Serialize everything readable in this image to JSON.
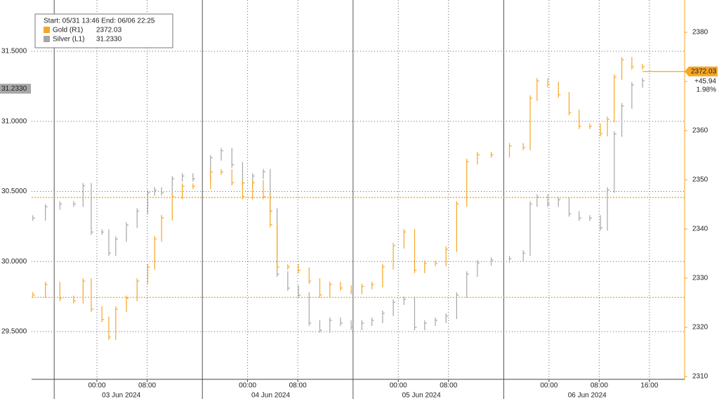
{
  "chart_data": {
    "type": "hilo",
    "header": "Start: 05/31 13:46 End: 06/06 22:25",
    "x": [
      -10.2,
      -8.2,
      -5.9,
      -3.7,
      -2.2,
      -0.9,
      0.8,
      1.9,
      3.0,
      4.7,
      6.4,
      8.1,
      9.2,
      10.3,
      12.0,
      13.6,
      15.3,
      18.1,
      19.8,
      21.5,
      23.2,
      24.8,
      26.5,
      27.6,
      28.7,
      30.4,
      32.1,
      33.8,
      35.5,
      37.1,
      38.8,
      40.5,
      42.2,
      43.8,
      45.5,
      47.2,
      48.9,
      50.6,
      52.2,
      53.9,
      55.6,
      57.3,
      58.9,
      60.6,
      62.8,
      65.7,
      67.9,
      69.0,
      70.1,
      71.8,
      73.5,
      75.2,
      76.8,
      78.5,
      80.2,
      81.3,
      82.4,
      83.6,
      85.2,
      86.9
    ],
    "xlim": [
      -10.4,
      93.6
    ],
    "xticks": [
      {
        "value": 0,
        "label": "00:00"
      },
      {
        "value": 8,
        "label": "08:00"
      },
      {
        "value": 24,
        "label": "00:00"
      },
      {
        "value": 32,
        "label": "08:00"
      },
      {
        "value": 48,
        "label": "00:00"
      },
      {
        "value": 56,
        "label": "08:00"
      },
      {
        "value": 72,
        "label": "00:00"
      },
      {
        "value": 80,
        "label": "08:00"
      },
      {
        "value": 88,
        "label": "16:00"
      }
    ],
    "x_separators": [
      -6.8,
      16.8,
      40.8,
      64.8
    ],
    "day_labels": [
      "03 Jun 2024",
      "04 Jun 2024",
      "05 Jun 2024",
      "06 Jun 2024"
    ],
    "ylim": [
      29.159,
      31.866
    ],
    "yticks": [
      {
        "value": 29.5,
        "label": "29.5000"
      },
      {
        "value": 30.0,
        "label": "30.0000"
      },
      {
        "value": 30.5,
        "label": "30.5000"
      },
      {
        "value": 31.0,
        "label": "31.0000"
      },
      {
        "value": 31.5,
        "label": "31.5000"
      }
    ],
    "y2lim": [
      2309.43,
      2386.57
    ],
    "y2ticks": [
      2310,
      2320,
      2330,
      2340,
      2350,
      2360,
      2370,
      2380
    ],
    "ref_lines": [
      2326.09,
      2346.4
    ],
    "grid": true,
    "series": [
      {
        "name": "Gold (R1)",
        "color": "#f5a623",
        "axis": "y2",
        "last": 2372.03,
        "last_label": "2372.03",
        "change_label": "+45.94",
        "pct_label": "1.98%",
        "values": [
          2326.6,
          2328.7,
          2325.9,
          2325.4,
          2329.4,
          2323.7,
          2321.6,
          2318,
          2323.7,
          2325.9,
          2329.4,
          2332.3,
          2338,
          2342.3,
          2346.6,
          2348.7,
          2348.7,
          2351.6,
          2351.6,
          2349.4,
          2346.6,
          2349.4,
          2346.6,
          2340.9,
          2332.3,
          2332.3,
          2331.6,
          2329.4,
          2326.6,
          2328.7,
          2328,
          2327.3,
          2328.3,
          2328.7,
          2332.3,
          2336.6,
          2339.4,
          2331.6,
          2333,
          2333,
          2335.9,
          2345.1,
          2353.7,
          2355.1,
          2355.1,
          2356.9,
          2356.6,
          2366.6,
          2370.1,
          2369.4,
          2367.3,
          2363.7,
          2360.9,
          2360.9,
          2359.4,
          2362.3,
          2370.9,
          2374.4,
          2373,
          2373
        ]
      },
      {
        "name": "Silver (L1)",
        "color": "#a6a6a6",
        "axis": "y",
        "last": 31.233,
        "last_label": "31.2330",
        "values": [
          30.31,
          30.39,
          30.41,
          30.41,
          30.54,
          30.21,
          30.21,
          30.06,
          30.16,
          30.26,
          30.36,
          30.49,
          30.51,
          30.49,
          30.59,
          30.61,
          30.59,
          30.74,
          30.79,
          30.69,
          30.56,
          30.61,
          30.64,
          30.36,
          29.91,
          29.81,
          29.76,
          29.56,
          29.51,
          29.58,
          29.56,
          29.53,
          29.56,
          29.58,
          29.63,
          29.71,
          29.73,
          29.53,
          29.56,
          29.58,
          29.61,
          29.76,
          29.91,
          29.99,
          30.01,
          30.02,
          30.06,
          30.41,
          30.46,
          30.41,
          30.44,
          30.34,
          30.31,
          30.31,
          30.24,
          30.51,
          30.91,
          31.11,
          31.26,
          31.29
        ]
      }
    ]
  }
}
